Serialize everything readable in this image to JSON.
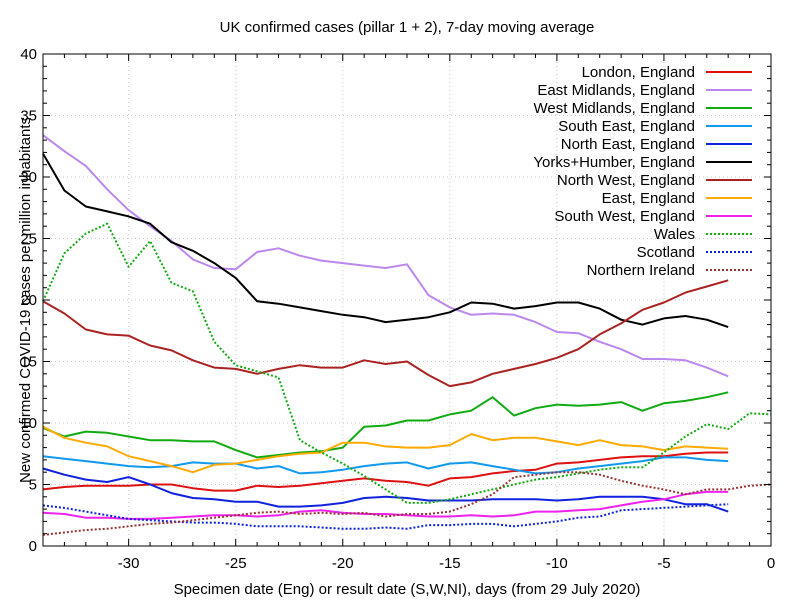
{
  "chart_data": {
    "type": "line",
    "title": "UK confirmed cases (pillar 1 + 2), 7-day moving average",
    "xlabel": "Specimen date (Eng) or result date (S,W,NI), days (from 29 July 2020)",
    "ylabel": "New confirmed COVID-19 cases per million inhabitants",
    "xlim": [
      -34,
      0
    ],
    "ylim": [
      0,
      40
    ],
    "xticks": [
      -30,
      -25,
      -20,
      -15,
      -10,
      -5,
      0
    ],
    "yticks": [
      0,
      5,
      10,
      15,
      20,
      25,
      30,
      35,
      40
    ],
    "grid": true,
    "legend_position": "top-right",
    "series": [
      {
        "name": "London, England",
        "color": "#dd1111",
        "dash": "solid",
        "x": [
          -34,
          -33,
          -32,
          -31,
          -30,
          -29,
          -28,
          -27,
          -26,
          -25,
          -24,
          -23,
          -22,
          -21,
          -20,
          -19,
          -18,
          -17,
          -16,
          -15,
          -14,
          -13,
          -12,
          -11,
          -10,
          -9,
          -8,
          -7,
          -6,
          -5,
          -4,
          -3,
          -2
        ],
        "values": [
          4.6,
          4.8,
          4.9,
          4.9,
          4.9,
          5.0,
          5.0,
          4.7,
          4.5,
          4.5,
          4.9,
          4.8,
          4.9,
          5.1,
          5.3,
          5.5,
          5.3,
          5.2,
          4.9,
          5.5,
          5.6,
          5.9,
          6.1,
          6.2,
          6.7,
          6.8,
          7.0,
          7.2,
          7.3,
          7.3,
          7.5,
          7.6,
          7.6
        ]
      },
      {
        "name": "East Midlands, England",
        "color": "#bb88ee",
        "dash": "solid",
        "x": [
          -34,
          -33,
          -32,
          -31,
          -30,
          -29,
          -28,
          -27,
          -26,
          -25,
          -24,
          -23,
          -22,
          -21,
          -20,
          -19,
          -18,
          -17,
          -16,
          -15,
          -14,
          -13,
          -12,
          -11,
          -10,
          -9,
          -8,
          -7,
          -6,
          -5,
          -4,
          -3,
          -2
        ],
        "values": [
          33.4,
          32.1,
          30.9,
          29.0,
          27.3,
          26.0,
          24.8,
          23.3,
          22.6,
          22.5,
          23.9,
          24.2,
          23.6,
          23.2,
          23.0,
          22.8,
          22.6,
          22.9,
          20.4,
          19.4,
          18.8,
          18.9,
          18.8,
          18.2,
          17.4,
          17.3,
          16.6,
          16.0,
          15.2,
          15.2,
          15.1,
          14.5,
          13.8
        ]
      },
      {
        "name": "West Midlands, England",
        "color": "#11aa11",
        "dash": "solid",
        "x": [
          -34,
          -33,
          -32,
          -31,
          -30,
          -29,
          -28,
          -27,
          -26,
          -25,
          -24,
          -23,
          -22,
          -21,
          -20,
          -19,
          -18,
          -17,
          -16,
          -15,
          -14,
          -13,
          -12,
          -11,
          -10,
          -9,
          -8,
          -7,
          -6,
          -5,
          -4,
          -3,
          -2
        ],
        "values": [
          9.6,
          8.9,
          9.3,
          9.2,
          8.9,
          8.6,
          8.6,
          8.5,
          8.5,
          7.8,
          7.2,
          7.4,
          7.6,
          7.7,
          8.0,
          9.7,
          9.8,
          10.2,
          10.2,
          10.7,
          11.0,
          12.1,
          10.6,
          11.2,
          11.5,
          11.4,
          11.5,
          11.7,
          11.0,
          11.6,
          11.8,
          12.1,
          12.5
        ]
      },
      {
        "name": "South East, England",
        "color": "#1199ee",
        "dash": "solid",
        "x": [
          -34,
          -33,
          -32,
          -31,
          -30,
          -29,
          -28,
          -27,
          -26,
          -25,
          -24,
          -23,
          -22,
          -21,
          -20,
          -19,
          -18,
          -17,
          -16,
          -15,
          -14,
          -13,
          -12,
          -11,
          -10,
          -9,
          -8,
          -7,
          -6,
          -5,
          -4,
          -3,
          -2
        ],
        "values": [
          7.3,
          7.1,
          6.9,
          6.7,
          6.5,
          6.4,
          6.5,
          6.8,
          6.7,
          6.7,
          6.3,
          6.5,
          5.9,
          6.0,
          6.2,
          6.5,
          6.7,
          6.8,
          6.3,
          6.7,
          6.8,
          6.5,
          6.2,
          5.9,
          6.0,
          6.3,
          6.5,
          6.7,
          6.9,
          7.2,
          7.2,
          7.0,
          6.9
        ]
      },
      {
        "name": "North East, England",
        "color": "#1122dd",
        "dash": "solid",
        "x": [
          -34,
          -33,
          -32,
          -31,
          -30,
          -29,
          -28,
          -27,
          -26,
          -25,
          -24,
          -23,
          -22,
          -21,
          -20,
          -19,
          -18,
          -17,
          -16,
          -15,
          -14,
          -13,
          -12,
          -11,
          -10,
          -9,
          -8,
          -7,
          -6,
          -5,
          -4,
          -3,
          -2
        ],
        "values": [
          6.3,
          5.8,
          5.4,
          5.2,
          5.6,
          5.0,
          4.3,
          3.9,
          3.8,
          3.6,
          3.6,
          3.2,
          3.2,
          3.3,
          3.5,
          3.9,
          4.0,
          3.9,
          3.7,
          3.7,
          3.7,
          3.8,
          3.8,
          3.8,
          3.7,
          3.8,
          4.0,
          4.0,
          4.0,
          3.8,
          3.4,
          3.4,
          2.8
        ]
      },
      {
        "name": "Yorks+Humber, England",
        "color": "#000000",
        "dash": "solid",
        "x": [
          -34,
          -33,
          -32,
          -31,
          -30,
          -29,
          -28,
          -27,
          -26,
          -25,
          -24,
          -23,
          -22,
          -21,
          -20,
          -19,
          -18,
          -17,
          -16,
          -15,
          -14,
          -13,
          -12,
          -11,
          -10,
          -9,
          -8,
          -7,
          -6,
          -5,
          -4,
          -3,
          -2
        ],
        "values": [
          31.9,
          28.9,
          27.6,
          27.2,
          26.8,
          26.2,
          24.7,
          24.0,
          23.0,
          21.8,
          19.9,
          19.7,
          19.4,
          19.1,
          18.8,
          18.6,
          18.2,
          18.4,
          18.6,
          19.0,
          19.8,
          19.7,
          19.3,
          19.5,
          19.8,
          19.8,
          19.3,
          18.4,
          18.0,
          18.5,
          18.7,
          18.4,
          17.8
        ]
      },
      {
        "name": "North West, England",
        "color": "#aa2222",
        "dash": "solid",
        "x": [
          -34,
          -33,
          -32,
          -31,
          -30,
          -29,
          -28,
          -27,
          -26,
          -25,
          -24,
          -23,
          -22,
          -21,
          -20,
          -19,
          -18,
          -17,
          -16,
          -15,
          -14,
          -13,
          -12,
          -11,
          -10,
          -9,
          -8,
          -7,
          -6,
          -5,
          -4,
          -3,
          -2
        ],
        "values": [
          19.9,
          18.9,
          17.6,
          17.2,
          17.1,
          16.3,
          15.9,
          15.1,
          14.5,
          14.4,
          14.0,
          14.4,
          14.7,
          14.5,
          14.5,
          15.1,
          14.8,
          15.0,
          13.9,
          13.0,
          13.3,
          14.0,
          14.4,
          14.8,
          15.3,
          16.0,
          17.2,
          18.1,
          19.2,
          19.8,
          20.6,
          21.1,
          21.6
        ]
      },
      {
        "name": "East, England",
        "color": "#ffaa00",
        "dash": "solid",
        "x": [
          -34,
          -33,
          -32,
          -31,
          -30,
          -29,
          -28,
          -27,
          -26,
          -25,
          -24,
          -23,
          -22,
          -21,
          -20,
          -19,
          -18,
          -17,
          -16,
          -15,
          -14,
          -13,
          -12,
          -11,
          -10,
          -9,
          -8,
          -7,
          -6,
          -5,
          -4,
          -3,
          -2
        ],
        "values": [
          9.7,
          8.8,
          8.4,
          8.1,
          7.3,
          6.9,
          6.5,
          6.0,
          6.6,
          6.7,
          7.0,
          7.3,
          7.5,
          7.6,
          8.4,
          8.4,
          8.1,
          8.0,
          8.0,
          8.2,
          9.1,
          8.6,
          8.8,
          8.8,
          8.5,
          8.2,
          8.6,
          8.2,
          8.1,
          7.8,
          8.1,
          8.0,
          7.9
        ]
      },
      {
        "name": "South West, England",
        "color": "#ee22ee",
        "dash": "solid",
        "x": [
          -34,
          -33,
          -32,
          -31,
          -30,
          -29,
          -28,
          -27,
          -26,
          -25,
          -24,
          -23,
          -22,
          -21,
          -20,
          -19,
          -18,
          -17,
          -16,
          -15,
          -14,
          -13,
          -12,
          -11,
          -10,
          -9,
          -8,
          -7,
          -6,
          -5,
          -4,
          -3,
          -2
        ],
        "values": [
          2.7,
          2.6,
          2.3,
          2.3,
          2.2,
          2.2,
          2.3,
          2.4,
          2.5,
          2.5,
          2.4,
          2.5,
          2.8,
          2.9,
          2.7,
          2.6,
          2.6,
          2.5,
          2.4,
          2.4,
          2.5,
          2.4,
          2.5,
          2.8,
          2.8,
          2.9,
          3.0,
          3.3,
          3.6,
          3.8,
          4.2,
          4.4,
          4.4
        ]
      },
      {
        "name": "Wales",
        "color": "#11aa11",
        "dash": "dotted",
        "x": [
          -34,
          -33,
          -32,
          -31,
          -30,
          -29,
          -28,
          -27,
          -26,
          -25,
          -24,
          -23,
          -22,
          -21,
          -20,
          -19,
          -18,
          -17,
          -16,
          -15,
          -14,
          -13,
          -12,
          -11,
          -10,
          -9,
          -8,
          -7,
          -6,
          -5,
          -4,
          -3,
          -2,
          -1,
          0
        ],
        "values": [
          19.9,
          23.8,
          25.4,
          26.2,
          22.7,
          24.8,
          21.4,
          20.7,
          16.6,
          14.7,
          14.2,
          13.7,
          8.6,
          7.6,
          6.7,
          5.7,
          4.6,
          3.5,
          3.5,
          3.8,
          4.2,
          4.6,
          5.0,
          5.4,
          5.6,
          5.9,
          6.2,
          6.4,
          6.4,
          7.6,
          8.9,
          9.9,
          9.5,
          10.8,
          10.7
        ]
      },
      {
        "name": "Scotland",
        "color": "#1122dd",
        "dash": "dotted",
        "x": [
          -34,
          -33,
          -32,
          -31,
          -30,
          -29,
          -28,
          -27,
          -26,
          -25,
          -24,
          -23,
          -22,
          -21,
          -20,
          -19,
          -18,
          -17,
          -16,
          -15,
          -14,
          -13,
          -12,
          -11,
          -10,
          -9,
          -8,
          -7,
          -6,
          -5,
          -4,
          -3,
          -2
        ],
        "values": [
          3.3,
          3.1,
          2.8,
          2.5,
          2.2,
          2.1,
          2.0,
          1.9,
          1.9,
          1.8,
          1.6,
          1.6,
          1.6,
          1.5,
          1.4,
          1.4,
          1.5,
          1.4,
          1.7,
          1.7,
          1.8,
          1.8,
          1.6,
          1.8,
          2.0,
          2.3,
          2.4,
          2.9,
          3.0,
          3.1,
          3.2,
          3.3,
          3.4
        ]
      },
      {
        "name": "Northern Ireland",
        "color": "#993333",
        "dash": "dotted",
        "x": [
          -34,
          -33,
          -32,
          -31,
          -30,
          -29,
          -28,
          -27,
          -26,
          -25,
          -24,
          -23,
          -22,
          -21,
          -20,
          -19,
          -18,
          -17,
          -16,
          -15,
          -14,
          -13,
          -12,
          -11,
          -10,
          -9,
          -8,
          -7,
          -6,
          -5,
          -4,
          -3,
          -2,
          -1,
          0
        ],
        "values": [
          0.9,
          1.1,
          1.3,
          1.4,
          1.6,
          1.8,
          1.9,
          2.1,
          2.3,
          2.5,
          2.7,
          2.8,
          2.6,
          2.7,
          2.6,
          2.7,
          2.4,
          2.6,
          2.6,
          2.8,
          3.4,
          4.2,
          5.6,
          5.8,
          6.0,
          6.0,
          5.8,
          5.3,
          4.9,
          4.6,
          4.2,
          4.6,
          4.6,
          4.9,
          5.0
        ]
      }
    ]
  }
}
